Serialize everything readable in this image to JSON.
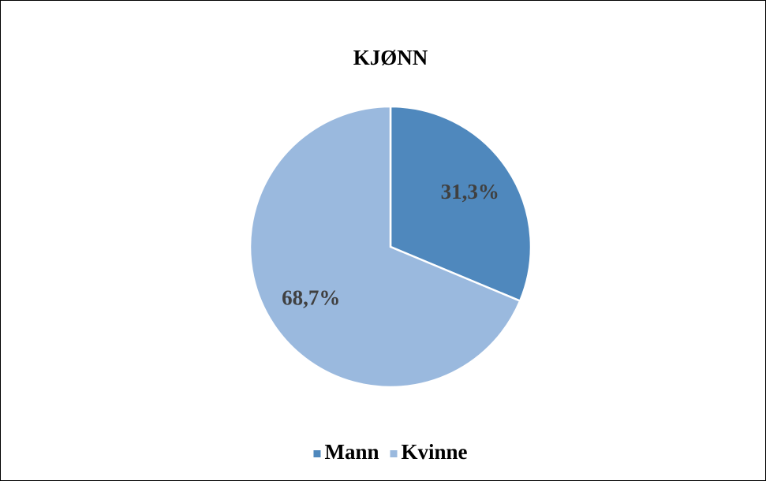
{
  "chart_data": {
    "type": "pie",
    "title": "KJØNN",
    "categories": [
      "Mann",
      "Kvinne"
    ],
    "values": [
      31.3,
      68.7
    ],
    "value_labels": [
      "31,3%",
      "68,7%"
    ],
    "colors": [
      "#4f88bd",
      "#9ab9de"
    ],
    "legend": "bottom"
  }
}
